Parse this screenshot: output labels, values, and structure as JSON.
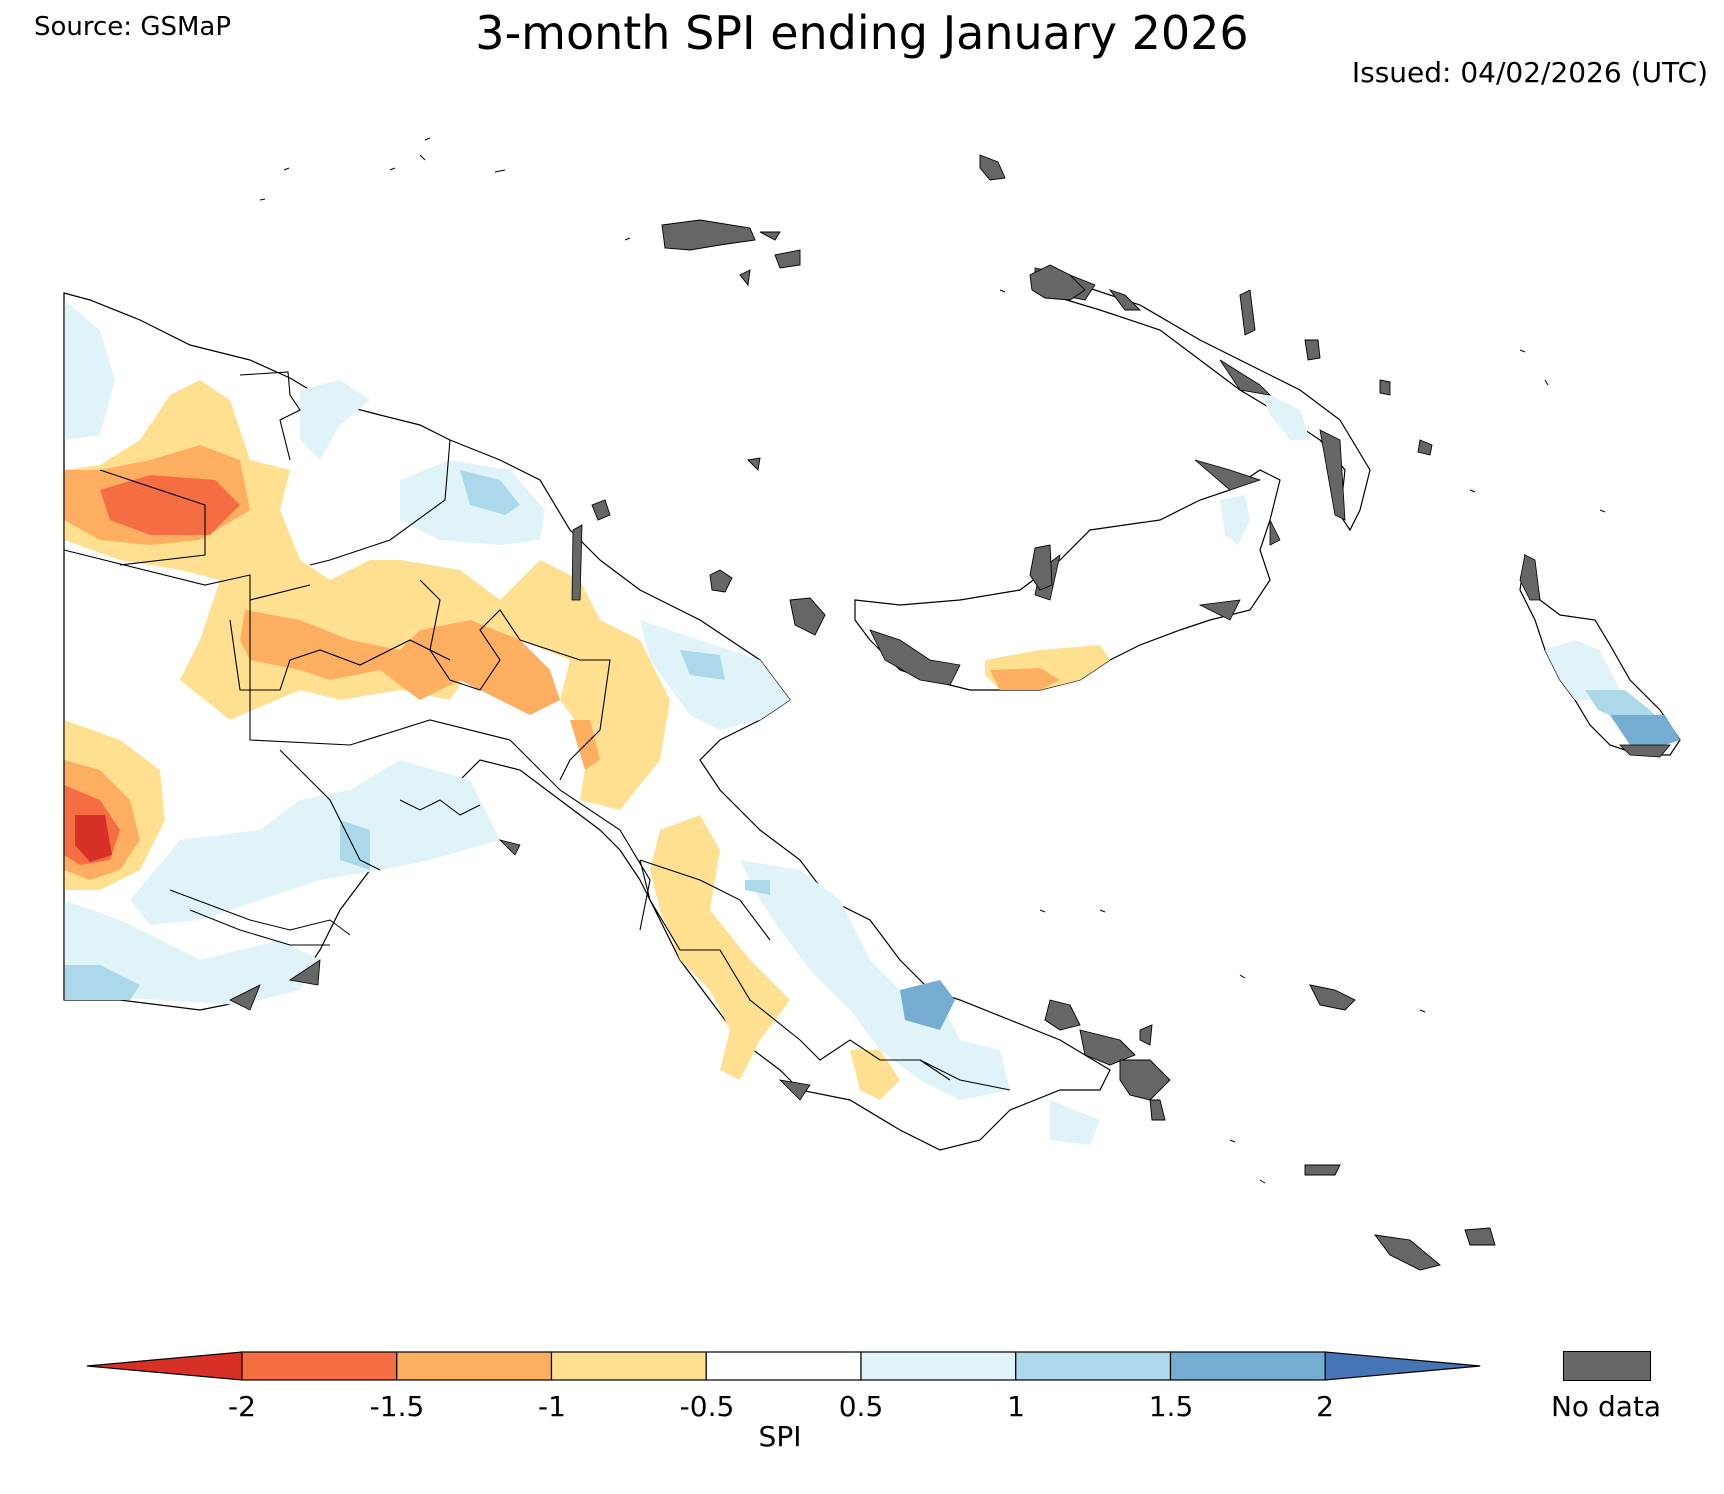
{
  "header": {
    "source": "Source: GSMaP",
    "title": "3-month SPI ending January 2026",
    "issued": "Issued: 04/02/2026 (UTC)"
  },
  "map": {
    "region": "Papua New Guinea",
    "variable": "SPI",
    "period_months": 3,
    "nodata_color": "#666666",
    "boundary_color": "#000000"
  },
  "colorbar": {
    "label": "SPI",
    "ticks": [
      "-2",
      "-1.5",
      "-1",
      "-0.5",
      "0.5",
      "1",
      "1.5",
      "2"
    ],
    "bins": [
      {
        "range": "< -2",
        "color": "#d73027"
      },
      {
        "range": "-2 to -1.5",
        "color": "#f46d43"
      },
      {
        "range": "-1.5 to -1",
        "color": "#fdae61"
      },
      {
        "range": "-1 to -0.5",
        "color": "#fee090"
      },
      {
        "range": "-0.5 to 0.5",
        "color": "#ffffff"
      },
      {
        "range": "0.5 to 1",
        "color": "#e0f3f8"
      },
      {
        "range": "1 to 1.5",
        "color": "#abd9e9"
      },
      {
        "range": "1.5 to 2",
        "color": "#74add1"
      },
      {
        "range": "> 2",
        "color": "#4575b4"
      }
    ]
  },
  "legend": {
    "nodata_label": "No data"
  }
}
